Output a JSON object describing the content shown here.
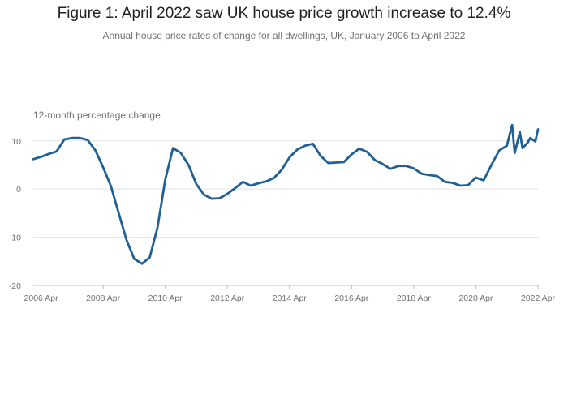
{
  "page": {
    "title": "Figure 1: April 2022 saw UK house price growth increase to 12.4%",
    "subtitle": "Annual house price rates of change for all dwellings, UK, January 2006 to April 2022"
  },
  "chart_data": {
    "type": "line",
    "ylabel": "12-month percentage change",
    "xlabel": "",
    "ylim": [
      -20,
      14
    ],
    "xlim": [
      "2006-01",
      "2022-04"
    ],
    "yticks": [
      {
        "value": 10,
        "label": "10"
      },
      {
        "value": 0,
        "label": "0"
      },
      {
        "value": -10,
        "label": "-10"
      },
      {
        "value": -20,
        "label": "-20"
      }
    ],
    "xticks": [
      {
        "date": "2006-04",
        "label": "2006 Apr"
      },
      {
        "date": "2008-04",
        "label": "2008 Apr"
      },
      {
        "date": "2010-04",
        "label": "2010 Apr"
      },
      {
        "date": "2012-04",
        "label": "2012 Apr"
      },
      {
        "date": "2014-04",
        "label": "2014 Apr"
      },
      {
        "date": "2016-04",
        "label": "2016 Apr"
      },
      {
        "date": "2018-04",
        "label": "2018 Apr"
      },
      {
        "date": "2020-04",
        "label": "2020 Apr"
      },
      {
        "date": "2022-04",
        "label": "2022 Apr"
      }
    ],
    "grid": true,
    "colors": {
      "line": "#206095",
      "grid": "#e2e2e3",
      "axis": "#bebebe",
      "text": "#707071"
    },
    "series": [
      {
        "values": [
          [
            "2006-01",
            6.2
          ],
          [
            "2006-04",
            6.7
          ],
          [
            "2006-07",
            7.3
          ],
          [
            "2006-10",
            7.8
          ],
          [
            "2007-01",
            10.3
          ],
          [
            "2007-04",
            10.6
          ],
          [
            "2007-07",
            10.6
          ],
          [
            "2007-10",
            10.2
          ],
          [
            "2008-01",
            8.0
          ],
          [
            "2008-04",
            4.5
          ],
          [
            "2008-07",
            0.6
          ],
          [
            "2008-10",
            -5.0
          ],
          [
            "2009-01",
            -10.5
          ],
          [
            "2009-04",
            -14.5
          ],
          [
            "2009-07",
            -15.5
          ],
          [
            "2009-10",
            -14.2
          ],
          [
            "2010-01",
            -8.0
          ],
          [
            "2010-04",
            2.0
          ],
          [
            "2010-07",
            8.5
          ],
          [
            "2010-10",
            7.5
          ],
          [
            "2011-01",
            5.0
          ],
          [
            "2011-04",
            1.0
          ],
          [
            "2011-07",
            -1.2
          ],
          [
            "2011-10",
            -2.0
          ],
          [
            "2012-01",
            -1.9
          ],
          [
            "2012-04",
            -1.0
          ],
          [
            "2012-07",
            0.2
          ],
          [
            "2012-10",
            1.5
          ],
          [
            "2013-01",
            0.7
          ],
          [
            "2013-04",
            1.2
          ],
          [
            "2013-07",
            1.6
          ],
          [
            "2013-10",
            2.3
          ],
          [
            "2014-01",
            4.0
          ],
          [
            "2014-04",
            6.6
          ],
          [
            "2014-07",
            8.2
          ],
          [
            "2014-10",
            9.0
          ],
          [
            "2015-01",
            9.4
          ],
          [
            "2015-04",
            6.9
          ],
          [
            "2015-07",
            5.4
          ],
          [
            "2015-10",
            5.5
          ],
          [
            "2016-01",
            5.6
          ],
          [
            "2016-04",
            7.2
          ],
          [
            "2016-07",
            8.4
          ],
          [
            "2016-10",
            7.7
          ],
          [
            "2017-01",
            6.0
          ],
          [
            "2017-04",
            5.2
          ],
          [
            "2017-07",
            4.2
          ],
          [
            "2017-10",
            4.8
          ],
          [
            "2018-01",
            4.8
          ],
          [
            "2018-04",
            4.3
          ],
          [
            "2018-07",
            3.2
          ],
          [
            "2018-10",
            2.9
          ],
          [
            "2019-01",
            2.7
          ],
          [
            "2019-04",
            1.5
          ],
          [
            "2019-07",
            1.3
          ],
          [
            "2019-10",
            0.7
          ],
          [
            "2020-01",
            0.8
          ],
          [
            "2020-04",
            2.4
          ],
          [
            "2020-07",
            1.8
          ],
          [
            "2020-10",
            5.0
          ],
          [
            "2021-01",
            8.0
          ],
          [
            "2021-04",
            9.0
          ],
          [
            "2021-06",
            13.3
          ],
          [
            "2021-07",
            7.5
          ],
          [
            "2021-09",
            11.8
          ],
          [
            "2021-10",
            8.5
          ],
          [
            "2021-12",
            9.6
          ],
          [
            "2022-01",
            10.6
          ],
          [
            "2022-03",
            9.9
          ],
          [
            "2022-04",
            12.4
          ]
        ]
      }
    ]
  }
}
